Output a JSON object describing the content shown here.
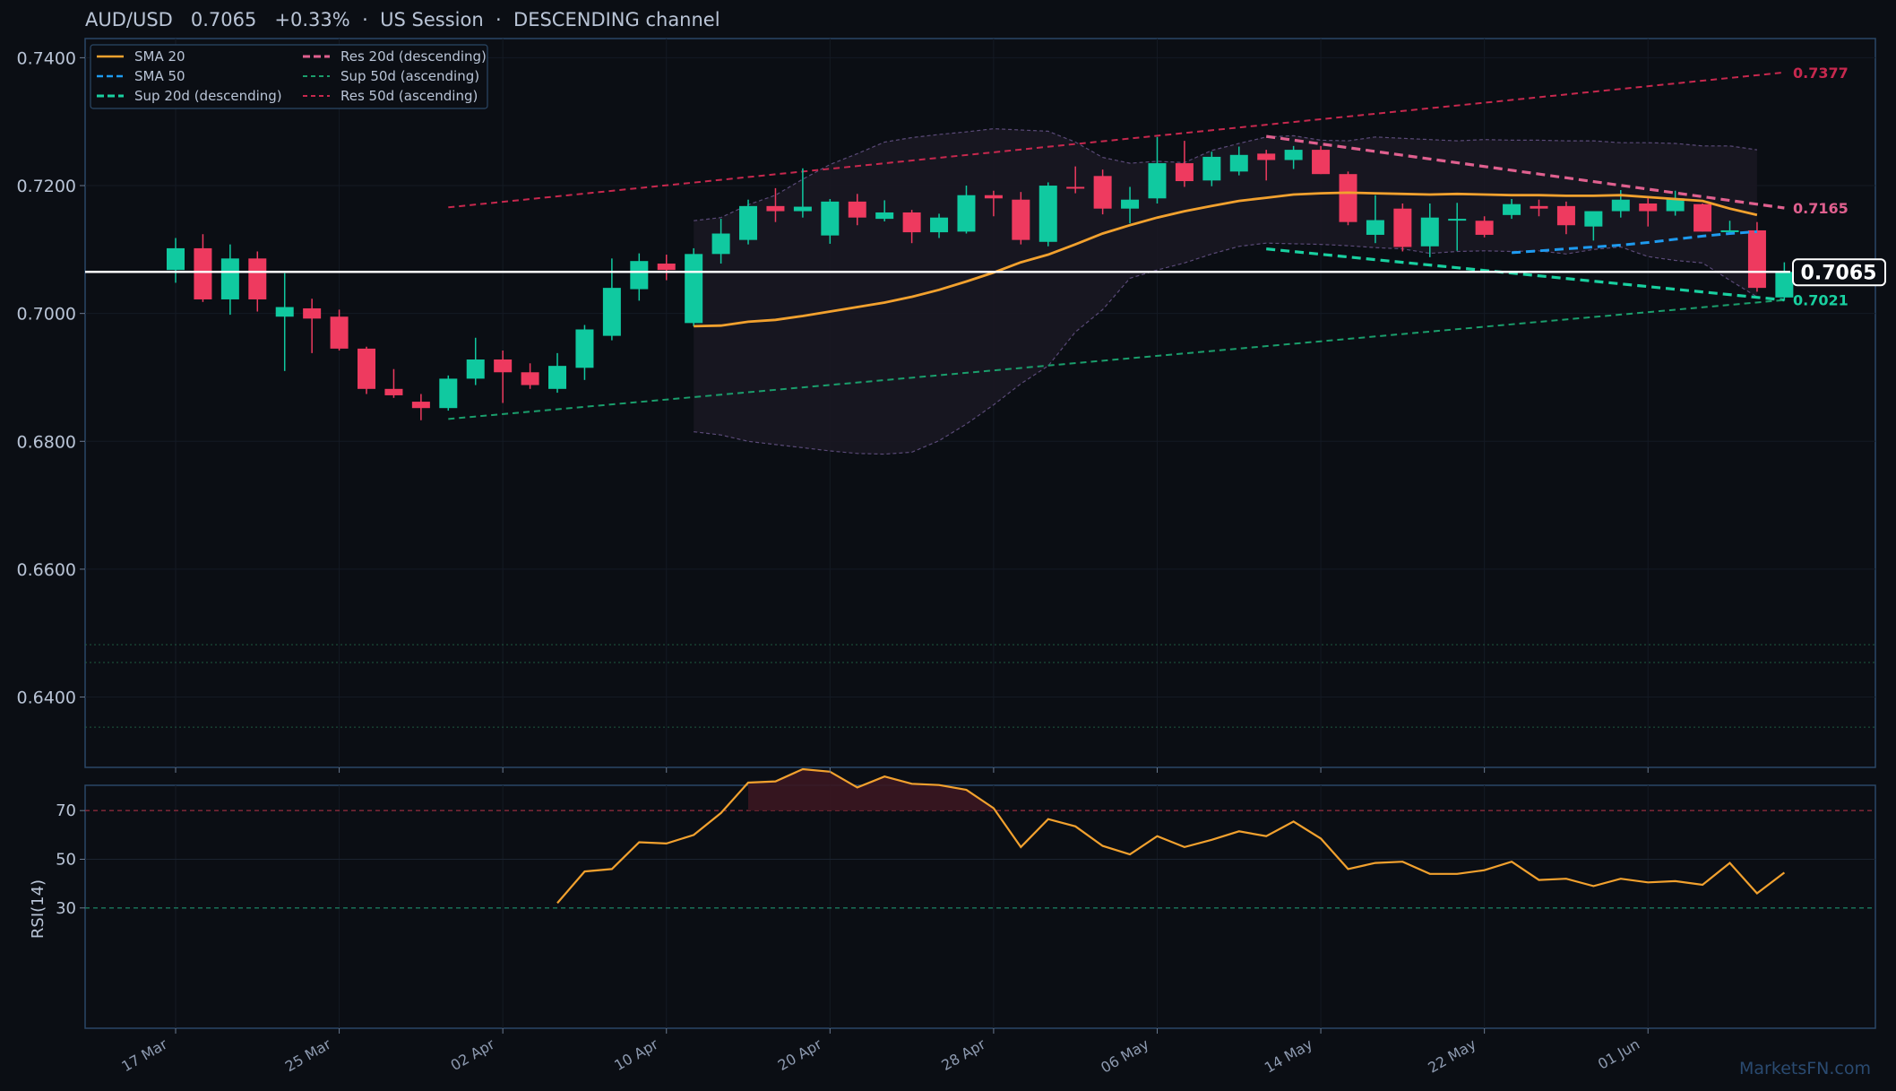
{
  "header": {
    "symbol": "AUD/USD",
    "price": "0.7065",
    "change": "+0.33%",
    "session": "US Session",
    "channel": "DESCENDING channel",
    "separator": "·"
  },
  "watermark": "MarketsFN.com",
  "colors": {
    "background": "#0b0e14",
    "panel_border": "#2b4766",
    "bull": "#10c9a0",
    "bear": "#ee3a5f",
    "sma20": "#f2a12e",
    "sma50": "#1e9bf0",
    "res20": "#e0608f",
    "sup20": "#19d0a0",
    "res50": "#c7284e",
    "sup50": "#1a9e6c",
    "rsi": "#f2a12e",
    "price_line": "#ffffff"
  },
  "chart_data": [
    {
      "type": "candlestick",
      "panel": "price",
      "ylim": [
        0.629,
        0.743
      ],
      "yticks": [
        0.64,
        0.66,
        0.68,
        0.7,
        0.72,
        0.74
      ],
      "ytick_labels": [
        "0.6400",
        "0.6600",
        "0.6800",
        "0.7000",
        "0.7200",
        "0.7400"
      ],
      "x_labels": [
        {
          "label": "17 Mar",
          "index": 0
        },
        {
          "label": "25 Mar",
          "index": 6
        },
        {
          "label": "02 Apr",
          "index": 12
        },
        {
          "label": "10 Apr",
          "index": 18
        },
        {
          "label": "20 Apr",
          "index": 24
        },
        {
          "label": "28 Apr",
          "index": 30
        },
        {
          "label": "06 May",
          "index": 36
        },
        {
          "label": "14 May",
          "index": 42
        },
        {
          "label": "22 May",
          "index": 48
        },
        {
          "label": "01 Jun",
          "index": 54
        }
      ],
      "ohlc": [
        [
          0.7068,
          0.7118,
          0.7048,
          0.7102
        ],
        [
          0.7102,
          0.7124,
          0.7018,
          0.7022
        ],
        [
          0.7022,
          0.7108,
          0.6998,
          0.7086
        ],
        [
          0.7086,
          0.7097,
          0.7003,
          0.7022
        ],
        [
          0.6995,
          0.7063,
          0.691,
          0.701
        ],
        [
          0.7008,
          0.7023,
          0.6938,
          0.6992
        ],
        [
          0.6995,
          0.7006,
          0.6942,
          0.6945
        ],
        [
          0.6945,
          0.6948,
          0.6874,
          0.6882
        ],
        [
          0.6882,
          0.6913,
          0.6868,
          0.6872
        ],
        [
          0.6862,
          0.6874,
          0.6833,
          0.6852
        ],
        [
          0.6852,
          0.6903,
          0.6848,
          0.6898
        ],
        [
          0.6898,
          0.6962,
          0.6888,
          0.6928
        ],
        [
          0.6928,
          0.6942,
          0.686,
          0.6908
        ],
        [
          0.6908,
          0.6922,
          0.6882,
          0.6888
        ],
        [
          0.6882,
          0.6938,
          0.6876,
          0.6918
        ],
        [
          0.6915,
          0.6982,
          0.6896,
          0.6975
        ],
        [
          0.6965,
          0.7086,
          0.6958,
          0.704
        ],
        [
          0.7038,
          0.7094,
          0.702,
          0.7082
        ],
        [
          0.7078,
          0.7092,
          0.7052,
          0.7068
        ],
        [
          0.6985,
          0.7102,
          0.698,
          0.7093
        ],
        [
          0.7093,
          0.7148,
          0.7078,
          0.7125
        ],
        [
          0.7115,
          0.7178,
          0.7108,
          0.7168
        ],
        [
          0.7168,
          0.7196,
          0.7143,
          0.716
        ],
        [
          0.716,
          0.7227,
          0.715,
          0.7167
        ],
        [
          0.7122,
          0.7179,
          0.7109,
          0.7175
        ],
        [
          0.7175,
          0.7187,
          0.7138,
          0.715
        ],
        [
          0.7148,
          0.7177,
          0.7144,
          0.7158
        ],
        [
          0.7158,
          0.7162,
          0.711,
          0.7127
        ],
        [
          0.7127,
          0.7156,
          0.7118,
          0.715
        ],
        [
          0.7128,
          0.72,
          0.7125,
          0.7185
        ],
        [
          0.7185,
          0.7192,
          0.7152,
          0.718
        ],
        [
          0.7178,
          0.719,
          0.7108,
          0.7115
        ],
        [
          0.7112,
          0.7205,
          0.7105,
          0.72
        ],
        [
          0.7198,
          0.723,
          0.7188,
          0.7196
        ],
        [
          0.7215,
          0.7225,
          0.7155,
          0.7164
        ],
        [
          0.7164,
          0.7198,
          0.7141,
          0.7178
        ],
        [
          0.718,
          0.7276,
          0.7172,
          0.7235
        ],
        [
          0.7235,
          0.727,
          0.7198,
          0.7207
        ],
        [
          0.7208,
          0.7253,
          0.7199,
          0.7245
        ],
        [
          0.7222,
          0.7261,
          0.7216,
          0.7248
        ],
        [
          0.725,
          0.7256,
          0.7208,
          0.724
        ],
        [
          0.724,
          0.7262,
          0.7226,
          0.7256
        ],
        [
          0.7256,
          0.7262,
          0.7218,
          0.7218
        ],
        [
          0.7218,
          0.7222,
          0.7138,
          0.7143
        ],
        [
          0.7123,
          0.7185,
          0.711,
          0.7146
        ],
        [
          0.7164,
          0.7172,
          0.7097,
          0.7104
        ],
        [
          0.7105,
          0.7172,
          0.7088,
          0.715
        ],
        [
          0.7146,
          0.7173,
          0.7098,
          0.7148
        ],
        [
          0.7145,
          0.7152,
          0.7119,
          0.7123
        ],
        [
          0.7154,
          0.7179,
          0.7148,
          0.7171
        ],
        [
          0.7168,
          0.7178,
          0.7152,
          0.7164
        ],
        [
          0.7168,
          0.7175,
          0.7124,
          0.7138
        ],
        [
          0.7136,
          0.7158,
          0.7114,
          0.716
        ],
        [
          0.716,
          0.7193,
          0.715,
          0.7178
        ],
        [
          0.7172,
          0.718,
          0.7136,
          0.716
        ],
        [
          0.716,
          0.7192,
          0.7153,
          0.718
        ],
        [
          0.7171,
          0.7172,
          0.7128,
          0.7128
        ],
        [
          0.7128,
          0.7145,
          0.7128,
          0.713
        ],
        [
          0.713,
          0.7143,
          0.7034,
          0.704
        ],
        [
          0.7025,
          0.708,
          0.702,
          0.7065
        ]
      ],
      "bollinger": {
        "start_index": 19,
        "upper": [
          0.7145,
          0.715,
          0.717,
          0.7185,
          0.721,
          0.7233,
          0.725,
          0.7268,
          0.7275,
          0.728,
          0.7284,
          0.7289,
          0.7287,
          0.7285,
          0.7268,
          0.7244,
          0.7235,
          0.7238,
          0.7236,
          0.7255,
          0.7266,
          0.7276,
          0.7278,
          0.7271,
          0.727,
          0.7276,
          0.7274,
          0.7272,
          0.727,
          0.7272,
          0.7271,
          0.7271,
          0.727,
          0.727,
          0.7267,
          0.7267,
          0.7266,
          0.7262,
          0.7262,
          0.7256
        ],
        "lower": [
          0.6815,
          0.681,
          0.68,
          0.6795,
          0.679,
          0.6785,
          0.6781,
          0.678,
          0.6783,
          0.6801,
          0.6827,
          0.6857,
          0.689,
          0.6918,
          0.6971,
          0.7006,
          0.7055,
          0.7068,
          0.7079,
          0.7093,
          0.7105,
          0.711,
          0.7109,
          0.7108,
          0.7106,
          0.7103,
          0.7101,
          0.7094,
          0.7097,
          0.7098,
          0.7097,
          0.7098,
          0.7093,
          0.71,
          0.7104,
          0.7089,
          0.7083,
          0.7079,
          0.7052,
          0.7026
        ]
      },
      "series": [
        {
          "name": "SMA 20",
          "start_index": 19,
          "style": "solid",
          "values": [
            0.698,
            0.6981,
            0.6987,
            0.699,
            0.6996,
            0.7003,
            0.701,
            0.7017,
            0.7026,
            0.7037,
            0.705,
            0.7064,
            0.708,
            0.7092,
            0.7108,
            0.7125,
            0.7138,
            0.715,
            0.716,
            0.7168,
            0.7176,
            0.7181,
            0.7186,
            0.7188,
            0.7189,
            0.7188,
            0.7187,
            0.7186,
            0.7187,
            0.7186,
            0.7185,
            0.7185,
            0.7184,
            0.7184,
            0.7185,
            0.7182,
            0.7179,
            0.7176,
            0.7164,
            0.7154
          ]
        },
        {
          "name": "SMA 50",
          "start_index": 49,
          "style": "dashed",
          "values": [
            0.7095,
            0.7098,
            0.7101,
            0.7104,
            0.7107,
            0.7111,
            0.7116,
            0.7121,
            0.7125,
            0.7128
          ]
        },
        {
          "name": "Sup 20d (descending)",
          "type": "trendline",
          "from": [
            40,
            0.7101
          ],
          "to": [
            59,
            0.7021
          ]
        },
        {
          "name": "Res 20d (descending)",
          "type": "trendline",
          "from": [
            40,
            0.7277
          ],
          "to": [
            59,
            0.7165
          ]
        },
        {
          "name": "Sup 50d (ascending)",
          "type": "trendline",
          "from": [
            10,
            0.6835
          ],
          "to": [
            59,
            0.7021
          ]
        },
        {
          "name": "Res 50d (ascending)",
          "type": "trendline",
          "from": [
            10,
            0.7166
          ],
          "to": [
            59,
            0.7377
          ]
        }
      ],
      "last_price": 0.7065,
      "last_price_label": "0.7065",
      "level_labels": [
        {
          "label": "0.7377",
          "value": 0.7377,
          "series": "Res 50d (ascending)"
        },
        {
          "label": "0.7165",
          "value": 0.7165,
          "series": "Res 20d (descending)"
        },
        {
          "label": "0.7021",
          "value": 0.7021,
          "series": "Sup 20d (descending)"
        }
      ],
      "reference_levels": [
        0.6482,
        0.6454,
        0.6353
      ],
      "legend_position": "top-left",
      "legend": [
        "SMA 20",
        "SMA 50",
        "Sup 20d (descending)",
        "Res 20d (descending)",
        "Sup 50d (ascending)",
        "Res 50d (ascending)"
      ]
    },
    {
      "type": "line",
      "panel": "rsi",
      "ylabel": "RSI(14)",
      "ylim": [
        0,
        100
      ],
      "yticks": [
        30,
        50,
        70
      ],
      "ytick_labels": [
        "30",
        "50",
        "70"
      ],
      "overbought": 70,
      "oversold": 30,
      "series": [
        {
          "name": "RSI(14)",
          "start_index": 14,
          "values": [
            32,
            45,
            46,
            57,
            56.5,
            60,
            69,
            81.5,
            82,
            87,
            86,
            79.5,
            84,
            81,
            80.5,
            78.5,
            71,
            55,
            66.5,
            63.5,
            55.5,
            52,
            59.5,
            55,
            58,
            61.5,
            59.5,
            65.5,
            58.5,
            46,
            48.5,
            49,
            44,
            44,
            45.5,
            49,
            41.5,
            42,
            39,
            42,
            40.5,
            41,
            39.5,
            48.5,
            36,
            44.5
          ]
        }
      ]
    }
  ]
}
